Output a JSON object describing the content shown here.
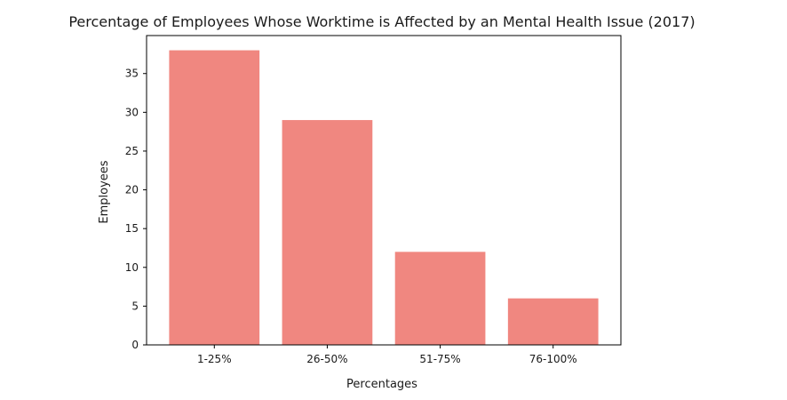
{
  "chart_data": {
    "type": "bar",
    "title": "Percentage of Employees Whose Worktime is Affected by an Mental Health Issue (2017)",
    "xlabel": "Percentages",
    "ylabel": "Employees",
    "categories": [
      "1-25%",
      "26-50%",
      "51-75%",
      "76-100%"
    ],
    "values": [
      38,
      29,
      12,
      6
    ],
    "ylim": [
      0,
      39.9
    ],
    "yticks": [
      0,
      5,
      10,
      15,
      20,
      25,
      30,
      35
    ],
    "bar_color": "#f08780",
    "grid": false,
    "legend": "none"
  }
}
